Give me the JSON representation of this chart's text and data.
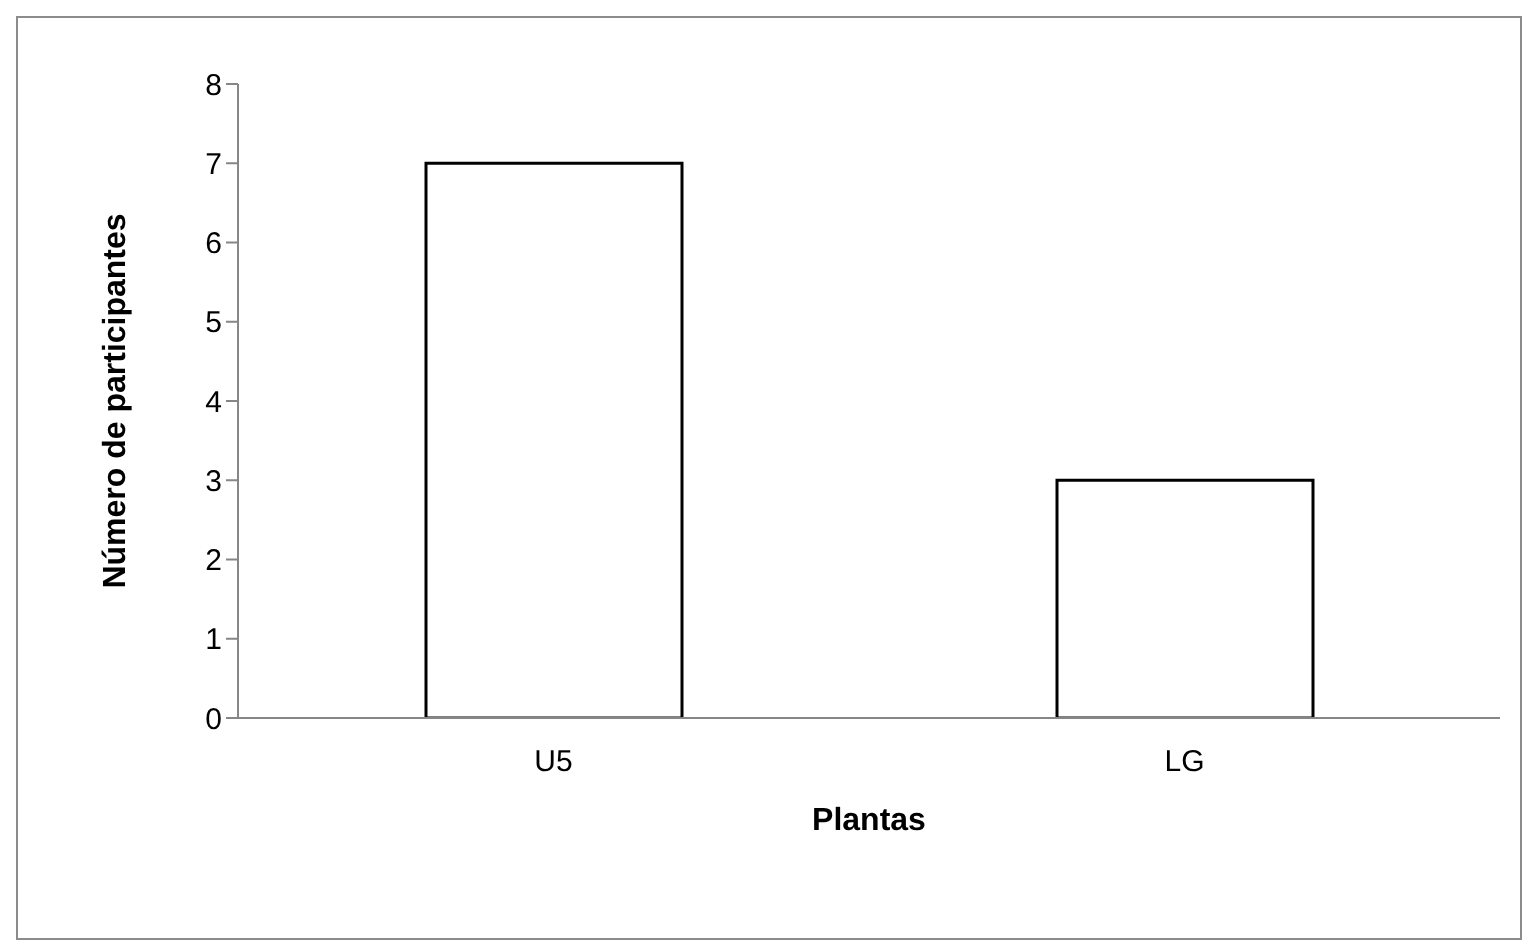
{
  "chart_data": {
    "type": "bar",
    "xlabel": "Plantas",
    "ylabel": "Número de participantes",
    "categories": [
      "U5",
      "LG"
    ],
    "values": [
      7,
      3
    ],
    "color": "#ffffff",
    "ylim": [
      0,
      8
    ],
    "yticks": [
      0,
      1,
      2,
      3,
      4,
      5,
      6,
      7,
      8
    ],
    "grid": false,
    "legend": false
  }
}
